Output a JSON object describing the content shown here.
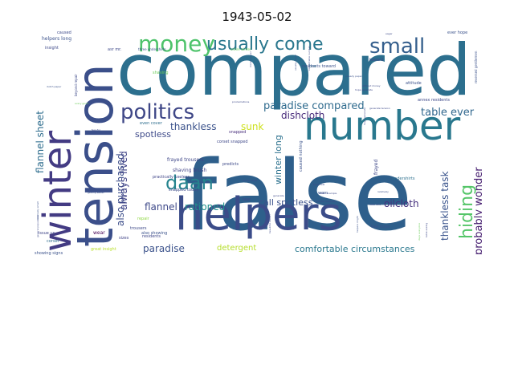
{
  "title": "1943-05-02",
  "colors": {
    "background": "#ffffff",
    "title": "#111111"
  },
  "words": [
    {
      "text": "compared",
      "color": "#2c6f8e"
    },
    {
      "text": "false",
      "color": "#2e5f8b"
    },
    {
      "text": "tension",
      "color": "#3b4f8a"
    },
    {
      "text": "helpers",
      "color": "#3b4c89"
    },
    {
      "text": "winter",
      "color": "#433b83"
    },
    {
      "text": "number",
      "color": "#29788e"
    },
    {
      "text": "politics",
      "color": "#3f4787"
    },
    {
      "text": "money",
      "color": "#4ec36b"
    },
    {
      "text": "usually come",
      "color": "#2a778e"
    },
    {
      "text": "small",
      "color": "#355f8d"
    },
    {
      "text": "daan",
      "color": "#25848e"
    },
    {
      "text": "hiding",
      "color": "#54c568"
    },
    {
      "text": "paradise compared",
      "color": "#2f6b8e"
    },
    {
      "text": "probably wonder",
      "color": "#482071"
    },
    {
      "text": "flannel sheet",
      "color": "#2e6d8e"
    },
    {
      "text": "also purchased",
      "color": "#3d4e8a"
    },
    {
      "text": "always lived",
      "color": "#414487"
    },
    {
      "text": "thankless task",
      "color": "#3a548c"
    },
    {
      "text": "table ever",
      "color": "#31678e"
    },
    {
      "text": "dishcloth",
      "color": "#472a7a"
    },
    {
      "text": "winter long",
      "color": "#2c718e"
    },
    {
      "text": "thankless",
      "color": "#3b528b"
    },
    {
      "text": "sunk",
      "color": "#cde11d"
    },
    {
      "text": "spotless",
      "color": "#3e4a89"
    },
    {
      "text": "call spotless",
      "color": "#3b518b"
    },
    {
      "text": "oilcloth",
      "color": "#46327e"
    },
    {
      "text": "flannel",
      "color": "#3e4989"
    },
    {
      "text": "rationed",
      "color": "#21918c"
    },
    {
      "text": "paradise",
      "color": "#3b528b"
    },
    {
      "text": "detergent",
      "color": "#b5de2b"
    },
    {
      "text": "comfortable circumstances",
      "color": "#2a788e"
    },
    {
      "text": "frayed trousers",
      "color": "#3f4788"
    },
    {
      "text": "shaving brush",
      "color": "#414487"
    },
    {
      "text": "snapped today",
      "color": "#3e4c8a"
    },
    {
      "text": "practically useless",
      "color": "#404588"
    },
    {
      "text": "also showing",
      "color": "#3b528b"
    },
    {
      "text": "even cover",
      "color": "#2e6e8e"
    },
    {
      "text": "corset snapped",
      "color": "#3f4889"
    },
    {
      "text": "snapped",
      "color": "#472d7b"
    },
    {
      "text": "predicts",
      "color": "#3e4a89"
    },
    {
      "text": "caused nothing",
      "color": "#3b528b"
    },
    {
      "text": "frayed",
      "color": "#3f4889"
    },
    {
      "text": "undershirts",
      "color": "#2d708e"
    },
    {
      "text": "two sizes",
      "color": "#3b528b"
    },
    {
      "text": "trousers",
      "color": "#3e4a89"
    },
    {
      "text": "residents",
      "color": "#3f4788"
    },
    {
      "text": "sizes",
      "color": "#414487"
    },
    {
      "text": "wear",
      "color": "#440154"
    },
    {
      "text": "tear",
      "color": "#3e4989"
    },
    {
      "text": "repair",
      "color": "#8fd744"
    },
    {
      "text": "corset",
      "color": "#2f6c8e"
    },
    {
      "text": "issue us",
      "color": "#404688"
    },
    {
      "text": "showing signs",
      "color": "#3b528b"
    },
    {
      "text": "great insight",
      "color": "#b8de29"
    },
    {
      "text": "caused",
      "color": "#3e4a89"
    },
    {
      "text": "helpers long",
      "color": "#3b528b"
    },
    {
      "text": "insight",
      "color": "#3e4989"
    },
    {
      "text": "shaving",
      "color": "#6ccd5a"
    },
    {
      "text": "attitude",
      "color": "#3b528b"
    },
    {
      "text": "ever hope",
      "color": "#3b528b"
    },
    {
      "text": "bra",
      "color": "#2a788e"
    },
    {
      "text": "toward",
      "color": "#3e4a89"
    },
    {
      "text": "residents toward",
      "color": "#3b528b"
    },
    {
      "text": "annex residents",
      "color": "#3e4989"
    },
    {
      "text": "reversed gentlemen",
      "color": "#3b528b"
    },
    {
      "text": "beyond repair",
      "color": "#3e4a89"
    },
    {
      "text": "worn",
      "color": "#3b528b"
    },
    {
      "text": "fear-for example",
      "color": "#3e4a89"
    },
    {
      "text": "hope generate",
      "color": "#3e4989"
    },
    {
      "text": "three undershirts",
      "color": "#3b528b"
    },
    {
      "text": "entire winter",
      "color": "#6ccd5a"
    },
    {
      "text": "proclamations",
      "color": "#3e4a89"
    },
    {
      "text": "asr mr.",
      "color": "#3e4a89"
    },
    {
      "text": "getting easier",
      "color": "#3b528b"
    },
    {
      "text": "general population",
      "color": "#3e4a89"
    },
    {
      "text": "relatively small",
      "color": "#3b528b"
    },
    {
      "text": "fear-for",
      "color": "#3e4989"
    },
    {
      "text": "generate",
      "color": "#3e4a89"
    },
    {
      "text": "relatively",
      "color": "#3b528b"
    },
    {
      "text": "false sets",
      "color": "#3e4a89"
    },
    {
      "text": "helpers might",
      "color": "#3b528b"
    },
    {
      "text": "without money",
      "color": "#3e4a89"
    },
    {
      "text": "take pass",
      "color": "#3e4a89"
    },
    {
      "text": "tried new",
      "color": "#3e4a89"
    },
    {
      "text": "every good",
      "color": "#6ccd5a"
    },
    {
      "text": "generate tension",
      "color": "#3e4a89"
    },
    {
      "text": "hope generate",
      "color": "#3e4989"
    },
    {
      "text": "money paper",
      "color": "#3b528b"
    },
    {
      "text": "usually paper",
      "color": "#3b528b"
    },
    {
      "text": "comfortable number",
      "color": "#3e4a89"
    },
    {
      "text": "beautiful daaan",
      "color": "#3e4a89"
    },
    {
      "text": "days everyone",
      "color": "#6ccd5a"
    },
    {
      "text": "table asking",
      "color": "#3e4a89"
    },
    {
      "text": "dutch paper",
      "color": "#3b528b"
    },
    {
      "text": "dollar example",
      "color": "#3e4a89"
    },
    {
      "text": "annex small",
      "color": "#3e4a89"
    },
    {
      "text": "already paper",
      "color": "#3b528b"
    },
    {
      "text": "eager",
      "color": "#3e4a89"
    }
  ]
}
